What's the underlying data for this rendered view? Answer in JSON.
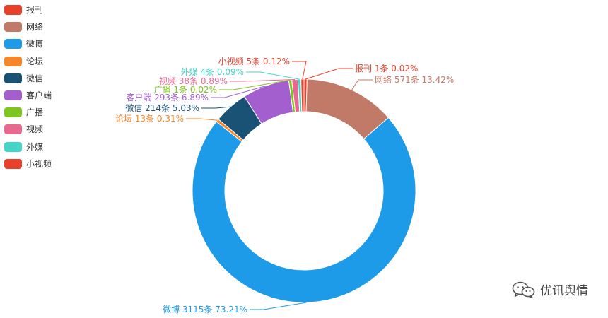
{
  "chart_data": {
    "type": "pie",
    "variant": "donut",
    "legend_position": "top-left",
    "slices": [
      {
        "name": "报刊",
        "count": 1,
        "percent": 0.02,
        "label": "报刊 1条  0.02%",
        "color": "#e8412b"
      },
      {
        "name": "网络",
        "count": 571,
        "percent": 13.42,
        "label": "网络 571条  13.42%",
        "color": "#c17a67"
      },
      {
        "name": "微博",
        "count": 3115,
        "percent": 73.21,
        "label": "微博 3115条  73.21%",
        "color": "#1e9be8"
      },
      {
        "name": "论坛",
        "count": 13,
        "percent": 0.31,
        "label": "论坛 13条  0.31%",
        "color": "#f5862a"
      },
      {
        "name": "微信",
        "count": 214,
        "percent": 5.03,
        "label": "微信 214条  5.03%",
        "color": "#1a5275"
      },
      {
        "name": "客户端",
        "count": 293,
        "percent": 6.89,
        "label": "客户端 293条  6.89%",
        "color": "#a25fcd"
      },
      {
        "name": "广播",
        "count": 1,
        "percent": 0.02,
        "label": "广播 1条  0.02%",
        "color": "#7ec61e"
      },
      {
        "name": "视频",
        "count": 38,
        "percent": 0.89,
        "label": "视频 38条  0.89%",
        "color": "#e8698f"
      },
      {
        "name": "外媒",
        "count": 4,
        "percent": 0.09,
        "label": "外媒 4条  0.09%",
        "color": "#46d4c9"
      },
      {
        "name": "小视频",
        "count": 5,
        "percent": 0.12,
        "label": "小视频 5条  0.12%",
        "color": "#e8412b"
      }
    ]
  },
  "watermark": {
    "text": "优讯舆情",
    "icon": "wechat-icon"
  }
}
